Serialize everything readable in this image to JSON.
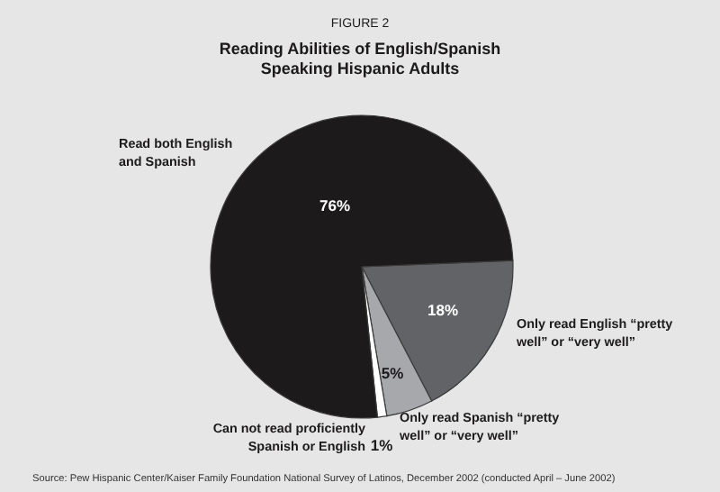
{
  "chart_data": {
    "type": "pie",
    "title": "Reading Abilities of English/Spanish Speaking Hispanic Adults",
    "subtitle": "FIGURE 2",
    "categories": [
      "Only read English “pretty well” or “very well”",
      "Only read Spanish “pretty well” or “very well”",
      "Can not read proficiently Spanish or English",
      "Read both English and Spanish"
    ],
    "values": [
      18,
      5,
      1,
      76
    ],
    "value_labels": [
      "18%",
      "5%",
      "1%",
      "76%"
    ],
    "colors": [
      "#626366",
      "#a6a8ab",
      "#ffffff",
      "#1c1a1b"
    ],
    "annotations": [
      "Source: Pew Hispanic Center/Kaiser Family Foundation National Survey of Latinos, December 2002 (conducted April – June 2002)"
    ]
  }
}
